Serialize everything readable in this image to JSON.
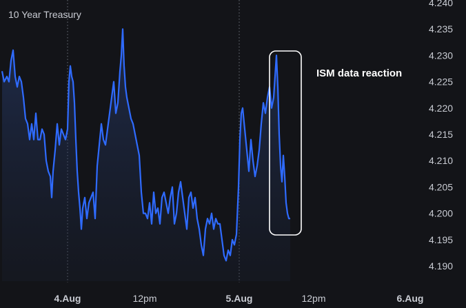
{
  "chart_data": {
    "type": "area",
    "title": "10 Year Treasury",
    "xlabel": "",
    "ylabel": "",
    "ylim": [
      4.188,
      4.24
    ],
    "yticks": [
      4.19,
      4.195,
      4.2,
      4.205,
      4.21,
      4.215,
      4.22,
      4.225,
      4.23,
      4.235,
      4.24
    ],
    "ytick_labels": [
      "4.190",
      "4.195",
      "4.200",
      "4.205",
      "4.210",
      "4.215",
      "4.220",
      "4.225",
      "4.230",
      "4.235",
      "4.240"
    ],
    "xlim": [
      0,
      600
    ],
    "xticks": [
      {
        "label": "4.Aug",
        "x": 98,
        "major": true
      },
      {
        "label": "12pm",
        "x": 210,
        "major": false
      },
      {
        "label": "5.Aug",
        "x": 347,
        "major": true
      },
      {
        "label": "12pm",
        "x": 455,
        "major": false
      },
      {
        "label": "6.Aug",
        "x": 595,
        "major": true
      }
    ],
    "grid": false,
    "annotation": {
      "text": "ISM data reaction"
    },
    "colors": {
      "line": "#2f6bff",
      "background": "#131418",
      "text": "#c9ccd3",
      "annotation_box": "#ffffff"
    },
    "series": [
      {
        "points": [
          [
            3,
            4.227
          ],
          [
            6,
            4.225
          ],
          [
            10,
            4.226
          ],
          [
            13,
            4.225
          ],
          [
            16,
            4.229
          ],
          [
            19,
            4.231
          ],
          [
            22,
            4.226
          ],
          [
            25,
            4.224
          ],
          [
            28,
            4.226
          ],
          [
            31,
            4.225
          ],
          [
            34,
            4.222
          ],
          [
            37,
            4.218
          ],
          [
            40,
            4.217
          ],
          [
            43,
            4.214
          ],
          [
            46,
            4.217
          ],
          [
            49,
            4.214
          ],
          [
            52,
            4.219
          ],
          [
            55,
            4.214
          ],
          [
            58,
            4.214
          ],
          [
            61,
            4.216
          ],
          [
            64,
            4.215
          ],
          [
            67,
            4.21
          ],
          [
            70,
            4.208
          ],
          [
            73,
            4.207
          ],
          [
            75,
            4.203
          ],
          [
            77,
            4.208
          ],
          [
            80,
            4.212
          ],
          [
            83,
            4.217
          ],
          [
            86,
            4.213
          ],
          [
            89,
            4.216
          ],
          [
            92,
            4.215
          ],
          [
            95,
            4.214
          ],
          [
            98,
            4.216
          ],
          [
            100,
            4.225
          ],
          [
            102,
            4.228
          ],
          [
            104,
            4.226
          ],
          [
            106,
            4.225
          ],
          [
            108,
            4.221
          ],
          [
            110,
            4.214
          ],
          [
            112,
            4.208
          ],
          [
            114,
            4.204
          ],
          [
            116,
            4.201
          ],
          [
            118,
            4.197
          ],
          [
            120,
            4.201
          ],
          [
            123,
            4.203
          ],
          [
            126,
            4.199
          ],
          [
            129,
            4.202
          ],
          [
            132,
            4.203
          ],
          [
            135,
            4.204
          ],
          [
            138,
            4.199
          ],
          [
            141,
            4.209
          ],
          [
            144,
            4.213
          ],
          [
            147,
            4.217
          ],
          [
            150,
            4.214
          ],
          [
            153,
            4.213
          ],
          [
            156,
            4.216
          ],
          [
            159,
            4.219
          ],
          [
            162,
            4.222
          ],
          [
            165,
            4.225
          ],
          [
            168,
            4.219
          ],
          [
            171,
            4.221
          ],
          [
            174,
            4.227
          ],
          [
            176,
            4.23
          ],
          [
            178,
            4.235
          ],
          [
            180,
            4.228
          ],
          [
            182,
            4.224
          ],
          [
            184,
            4.222
          ],
          [
            187,
            4.22
          ],
          [
            190,
            4.218
          ],
          [
            193,
            4.217
          ],
          [
            196,
            4.215
          ],
          [
            199,
            4.213
          ],
          [
            202,
            4.211
          ],
          [
            205,
            4.204
          ],
          [
            208,
            4.2
          ],
          [
            211,
            4.2
          ],
          [
            214,
            4.199
          ],
          [
            217,
            4.202
          ],
          [
            220,
            4.198
          ],
          [
            223,
            4.204
          ],
          [
            226,
            4.2
          ],
          [
            229,
            4.201
          ],
          [
            232,
            4.198
          ],
          [
            235,
            4.203
          ],
          [
            238,
            4.204
          ],
          [
            241,
            4.202
          ],
          [
            244,
            4.2
          ],
          [
            247,
            4.203
          ],
          [
            250,
            4.205
          ],
          [
            253,
            4.198
          ],
          [
            256,
            4.2
          ],
          [
            259,
            4.204
          ],
          [
            262,
            4.206
          ],
          [
            265,
            4.203
          ],
          [
            268,
            4.2
          ],
          [
            271,
            4.197
          ],
          [
            274,
            4.203
          ],
          [
            277,
            4.204
          ],
          [
            280,
            4.201
          ],
          [
            283,
            4.203
          ],
          [
            286,
            4.199
          ],
          [
            289,
            4.197
          ],
          [
            292,
            4.194
          ],
          [
            295,
            4.192
          ],
          [
            298,
            4.197
          ],
          [
            301,
            4.199
          ],
          [
            304,
            4.198
          ],
          [
            307,
            4.2
          ],
          [
            310,
            4.197
          ],
          [
            313,
            4.199
          ],
          [
            316,
            4.198
          ],
          [
            319,
            4.198
          ],
          [
            322,
            4.195
          ],
          [
            325,
            4.192
          ],
          [
            328,
            4.191
          ],
          [
            331,
            4.193
          ],
          [
            334,
            4.192
          ],
          [
            337,
            4.195
          ],
          [
            340,
            4.194
          ],
          [
            343,
            4.196
          ],
          [
            346,
            4.205
          ],
          [
            348,
            4.214
          ],
          [
            350,
            4.219
          ],
          [
            352,
            4.22
          ],
          [
            355,
            4.216
          ],
          [
            358,
            4.212
          ],
          [
            361,
            4.208
          ],
          [
            364,
            4.214
          ],
          [
            367,
            4.21
          ],
          [
            370,
            4.207
          ],
          [
            373,
            4.209
          ],
          [
            376,
            4.212
          ],
          [
            379,
            4.217
          ],
          [
            382,
            4.221
          ],
          [
            385,
            4.219
          ],
          [
            388,
            4.222
          ],
          [
            391,
            4.224
          ],
          [
            394,
            4.22
          ],
          [
            397,
            4.222
          ],
          [
            399,
            4.226
          ],
          [
            401,
            4.23
          ],
          [
            403,
            4.224
          ],
          [
            405,
            4.215
          ],
          [
            407,
            4.209
          ],
          [
            409,
            4.206
          ],
          [
            411,
            4.211
          ],
          [
            413,
            4.207
          ],
          [
            415,
            4.202
          ],
          [
            417,
            4.2
          ],
          [
            419,
            4.199
          ],
          [
            421,
            4.199
          ]
        ]
      }
    ]
  }
}
